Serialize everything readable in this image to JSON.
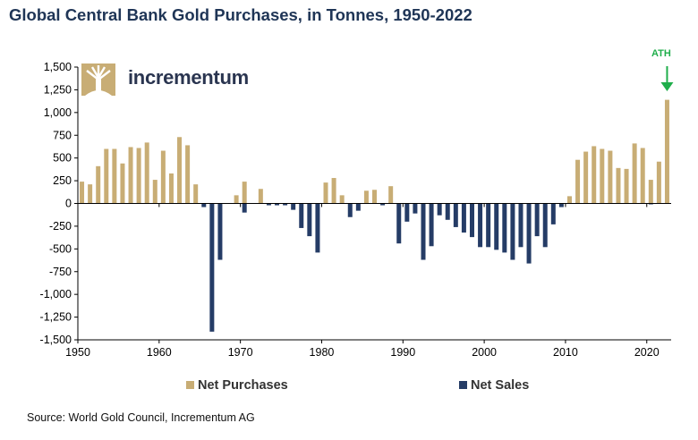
{
  "title": "Global Central Bank Gold Purchases, in Tonnes, 1950-2022",
  "source": "Source: World Gold Council, Incrementum AG",
  "logo": {
    "text": "incrementum",
    "icon": "tree-logo-icon"
  },
  "annotation": {
    "text": "ATH",
    "year": 2022,
    "color": "#1fae4b"
  },
  "legend": [
    {
      "label": "Net Purchases",
      "color": "#c8ad75"
    },
    {
      "label": "Net Sales",
      "color": "#253c66"
    }
  ],
  "chart_data": {
    "type": "bar",
    "title": "Global Central Bank Gold Purchases, in Tonnes, 1950-2022",
    "xlabel": "",
    "ylabel": "",
    "xlim": [
      1950,
      2023
    ],
    "ylim": [
      -1500,
      1500
    ],
    "x_ticks": [
      1950,
      1960,
      1970,
      1980,
      1990,
      2000,
      2010,
      2020
    ],
    "y_ticks": [
      -1500,
      -1250,
      -1000,
      -750,
      -500,
      -250,
      0,
      250,
      500,
      750,
      1000,
      1250,
      1500
    ],
    "y_tick_labels": [
      "-1,500",
      "-1,250",
      "-1,000",
      "-750",
      "-500",
      "-250",
      "0",
      "250",
      "500",
      "750",
      "1,000",
      "1,250",
      "1,500"
    ],
    "grid": false,
    "legend_position": "bottom",
    "years": [
      1950,
      1951,
      1952,
      1953,
      1954,
      1955,
      1956,
      1957,
      1958,
      1959,
      1960,
      1961,
      1962,
      1963,
      1964,
      1965,
      1966,
      1967,
      1968,
      1969,
      1970,
      1971,
      1972,
      1973,
      1974,
      1975,
      1976,
      1977,
      1978,
      1979,
      1980,
      1981,
      1982,
      1983,
      1984,
      1985,
      1986,
      1987,
      1988,
      1989,
      1990,
      1991,
      1992,
      1993,
      1994,
      1995,
      1996,
      1997,
      1998,
      1999,
      2000,
      2001,
      2002,
      2003,
      2004,
      2005,
      2006,
      2007,
      2008,
      2009,
      2010,
      2011,
      2012,
      2013,
      2014,
      2015,
      2016,
      2017,
      2018,
      2019,
      2020,
      2021,
      2022
    ],
    "series": [
      {
        "name": "Net Purchases",
        "color": "#c8ad75",
        "values": [
          240,
          210,
          410,
          600,
          600,
          440,
          620,
          610,
          670,
          260,
          580,
          330,
          730,
          640,
          210,
          0,
          0,
          0,
          0,
          90,
          240,
          0,
          160,
          0,
          0,
          0,
          0,
          0,
          0,
          0,
          230,
          280,
          90,
          0,
          0,
          140,
          150,
          0,
          190,
          0,
          0,
          0,
          0,
          0,
          0,
          0,
          0,
          0,
          0,
          0,
          0,
          0,
          0,
          0,
          0,
          0,
          0,
          0,
          0,
          0,
          80,
          480,
          570,
          630,
          600,
          580,
          390,
          380,
          660,
          610,
          260,
          460,
          1140
        ]
      },
      {
        "name": "Net Sales",
        "color": "#253c66",
        "values": [
          0,
          0,
          0,
          0,
          0,
          0,
          0,
          0,
          0,
          0,
          0,
          0,
          0,
          0,
          0,
          -40,
          -1410,
          -620,
          0,
          0,
          -100,
          0,
          0,
          -20,
          -20,
          -20,
          -70,
          -270,
          -360,
          -540,
          0,
          0,
          0,
          -150,
          -80,
          0,
          0,
          -20,
          0,
          -440,
          -200,
          -110,
          -620,
          -470,
          -130,
          -180,
          -260,
          -320,
          -370,
          -480,
          -480,
          -510,
          -540,
          -620,
          -480,
          -660,
          -360,
          -480,
          -230,
          -40,
          0,
          0,
          0,
          0,
          0,
          0,
          0,
          0,
          0,
          0,
          -10,
          0,
          0
        ]
      }
    ]
  }
}
